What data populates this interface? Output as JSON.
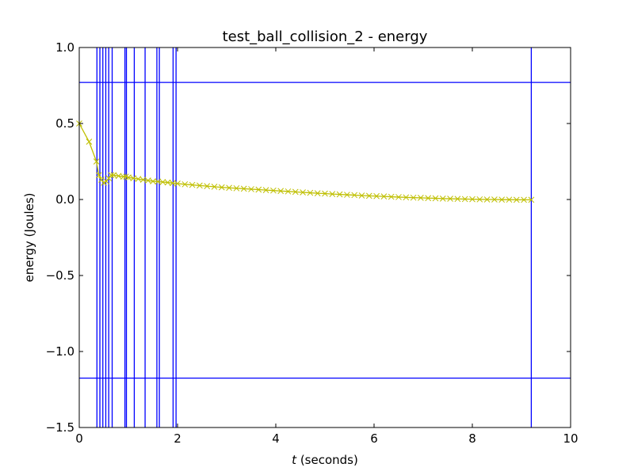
{
  "chart_data": {
    "type": "line",
    "title": "test_ball_collision_2 - energy",
    "xlabel_var": "t",
    "xlabel_rest": " (seconds)",
    "ylabel": "energy (Joules)",
    "xlim": [
      0,
      10
    ],
    "ylim": [
      -1.5,
      1.0
    ],
    "x_ticks": [
      0,
      2,
      4,
      6,
      8,
      10
    ],
    "y_ticks": [
      -1.5,
      -1.0,
      -0.5,
      0.0,
      0.5,
      1.0
    ],
    "x_tick_labels": [
      "0",
      "2",
      "4",
      "6",
      "8",
      "10"
    ],
    "y_tick_labels": [
      "−1.5",
      "−1.0",
      "−0.5",
      "0.0",
      "0.5",
      "1.0"
    ],
    "grid": false,
    "series": [
      {
        "color": "#bfbf00",
        "marker": "x",
        "x": [
          0.0,
          0.2,
          0.35,
          0.4,
          0.45,
          0.5,
          0.55,
          0.6,
          0.65,
          0.7,
          0.8,
          0.9,
          0.95,
          1.0,
          1.1,
          1.2,
          1.3,
          1.4,
          1.5,
          1.6,
          1.7,
          1.8,
          1.9,
          2.0,
          2.15,
          2.3,
          2.45,
          2.6,
          2.75,
          2.9,
          3.05,
          3.2,
          3.35,
          3.5,
          3.65,
          3.8,
          3.95,
          4.1,
          4.25,
          4.4,
          4.55,
          4.7,
          4.85,
          5.0,
          5.15,
          5.3,
          5.45,
          5.6,
          5.75,
          5.9,
          6.05,
          6.2,
          6.35,
          6.5,
          6.65,
          6.8,
          6.95,
          7.1,
          7.25,
          7.4,
          7.55,
          7.7,
          7.85,
          8.0,
          8.15,
          8.3,
          8.45,
          8.6,
          8.75,
          8.9,
          9.05,
          9.2
        ],
        "y": [
          0.5,
          0.38,
          0.25,
          0.16,
          0.13,
          0.11,
          0.12,
          0.14,
          0.16,
          0.16,
          0.155,
          0.15,
          0.15,
          0.145,
          0.14,
          0.135,
          0.13,
          0.125,
          0.12,
          0.118,
          0.115,
          0.112,
          0.108,
          0.105,
          0.1,
          0.096,
          0.092,
          0.088,
          0.084,
          0.08,
          0.077,
          0.074,
          0.071,
          0.068,
          0.065,
          0.062,
          0.059,
          0.056,
          0.053,
          0.05,
          0.047,
          0.044,
          0.041,
          0.039,
          0.036,
          0.034,
          0.031,
          0.029,
          0.026,
          0.024,
          0.022,
          0.02,
          0.018,
          0.016,
          0.014,
          0.012,
          0.011,
          0.009,
          0.008,
          0.006,
          0.005,
          0.004,
          0.003,
          0.002,
          0.001,
          0.0,
          0.0,
          -0.001,
          -0.001,
          -0.002,
          -0.002,
          -0.002
        ]
      }
    ],
    "vertical_lines": {
      "color": "#0000ff",
      "x": [
        0.36,
        0.42,
        0.48,
        0.54,
        0.6,
        0.67,
        0.93,
        0.96,
        1.12,
        1.34,
        1.58,
        1.63,
        1.91,
        1.97,
        9.2
      ]
    },
    "horizontal_lines": {
      "color": "#0000ff",
      "y": [
        0.77,
        -1.175
      ]
    }
  }
}
